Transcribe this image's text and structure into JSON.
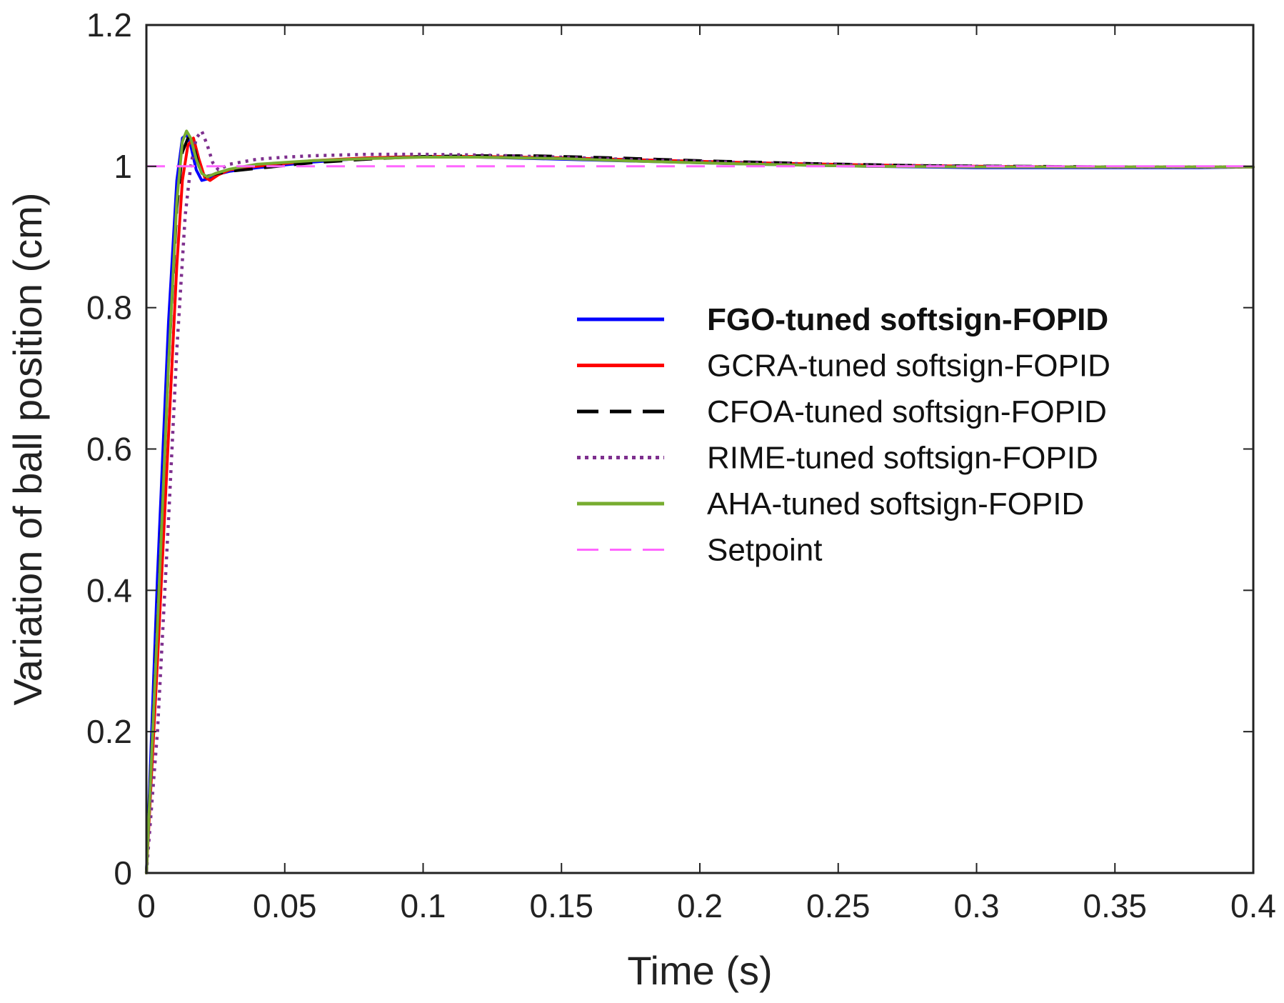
{
  "chart_data": {
    "type": "line",
    "title": "",
    "xlabel": "Time (s)",
    "ylabel": "Variation of ball position (cm)",
    "xlim": [
      0,
      0.4
    ],
    "ylim": [
      0,
      1.2
    ],
    "xticks": [
      0,
      0.05,
      0.1,
      0.15,
      0.2,
      0.25,
      0.3,
      0.35,
      0.4
    ],
    "xtick_labels": [
      "0",
      "0.05",
      "0.1",
      "0.15",
      "0.2",
      "0.25",
      "0.3",
      "0.35",
      "0.4"
    ],
    "yticks": [
      0,
      0.2,
      0.4,
      0.6,
      0.8,
      1.0,
      1.2
    ],
    "ytick_labels": [
      "0",
      "0.2",
      "0.4",
      "0.6",
      "0.8",
      "1",
      "1.2"
    ],
    "grid": false,
    "legend_position": "center-right",
    "series": [
      {
        "name": "FGO-tuned softsign-FOPID",
        "color": "#0000ff",
        "style": "solid",
        "bold_label": true,
        "x": [
          0,
          0.004,
          0.008,
          0.011,
          0.013,
          0.0145,
          0.016,
          0.018,
          0.02,
          0.022,
          0.025,
          0.03,
          0.04,
          0.06,
          0.08,
          0.1,
          0.12,
          0.15,
          0.18,
          0.22,
          0.26,
          0.3,
          0.34,
          0.38,
          0.4
        ],
        "y": [
          0,
          0.42,
          0.78,
          0.98,
          1.04,
          1.045,
          1.03,
          0.995,
          0.98,
          0.982,
          0.988,
          0.993,
          0.998,
          1.006,
          1.012,
          1.014,
          1.013,
          1.01,
          1.007,
          1.003,
          1.0,
          0.998,
          0.998,
          0.998,
          0.999
        ]
      },
      {
        "name": "GCRA-tuned softsign-FOPID",
        "color": "#ff0000",
        "style": "solid",
        "bold_label": false,
        "x": [
          0,
          0.004,
          0.008,
          0.011,
          0.013,
          0.015,
          0.017,
          0.019,
          0.021,
          0.023,
          0.026,
          0.03,
          0.04,
          0.06,
          0.08,
          0.1,
          0.12,
          0.15,
          0.18,
          0.22,
          0.26,
          0.3,
          0.34,
          0.38,
          0.4
        ],
        "y": [
          0,
          0.3,
          0.62,
          0.86,
          0.98,
          1.03,
          1.04,
          1.01,
          0.985,
          0.98,
          0.988,
          0.995,
          1.0,
          1.008,
          1.012,
          1.014,
          1.014,
          1.012,
          1.009,
          1.005,
          1.002,
          1.0,
          0.999,
          0.999,
          0.999
        ]
      },
      {
        "name": "CFOA-tuned softsign-FOPID",
        "color": "#000000",
        "style": "dashed",
        "bold_label": false,
        "x": [
          0,
          0.004,
          0.008,
          0.011,
          0.013,
          0.015,
          0.017,
          0.019,
          0.021,
          0.023,
          0.026,
          0.03,
          0.04,
          0.06,
          0.08,
          0.1,
          0.12,
          0.14,
          0.17,
          0.2,
          0.24,
          0.28,
          0.32,
          0.36,
          0.4
        ],
        "y": [
          0,
          0.36,
          0.72,
          0.94,
          1.02,
          1.04,
          1.03,
          1.0,
          0.985,
          0.987,
          0.99,
          0.993,
          0.997,
          1.005,
          1.01,
          1.014,
          1.015,
          1.015,
          1.012,
          1.008,
          1.004,
          1.001,
          1.0,
          0.999,
          0.999
        ]
      },
      {
        "name": "RIME-tuned softsign-FOPID",
        "color": "#7e2f8e",
        "style": "dotted",
        "bold_label": false,
        "x": [
          0,
          0.004,
          0.008,
          0.011,
          0.014,
          0.016,
          0.018,
          0.02,
          0.022,
          0.024,
          0.026,
          0.03,
          0.04,
          0.05,
          0.06,
          0.07,
          0.08,
          0.1,
          0.12,
          0.15,
          0.18,
          0.22,
          0.26,
          0.3,
          0.34,
          0.38,
          0.4
        ],
        "y": [
          0,
          0.2,
          0.5,
          0.74,
          0.93,
          1.0,
          1.04,
          1.05,
          1.03,
          1.005,
          0.995,
          1.003,
          1.01,
          1.013,
          1.015,
          1.016,
          1.017,
          1.017,
          1.016,
          1.013,
          1.009,
          1.005,
          1.002,
          1.0,
          0.999,
          0.999,
          0.999
        ]
      },
      {
        "name": "AHA-tuned softsign-FOPID",
        "color": "#77ac30",
        "style": "solid",
        "bold_label": false,
        "x": [
          0,
          0.004,
          0.008,
          0.011,
          0.013,
          0.0145,
          0.016,
          0.018,
          0.02,
          0.022,
          0.025,
          0.03,
          0.04,
          0.06,
          0.08,
          0.1,
          0.12,
          0.15,
          0.18,
          0.22,
          0.26,
          0.3,
          0.34,
          0.38,
          0.4
        ],
        "y": [
          0,
          0.35,
          0.72,
          0.95,
          1.035,
          1.05,
          1.04,
          1.01,
          0.99,
          0.985,
          0.99,
          0.996,
          1.003,
          1.008,
          1.011,
          1.013,
          1.013,
          1.011,
          1.007,
          1.003,
          1.0,
          0.999,
          0.999,
          0.999,
          0.999
        ]
      },
      {
        "name": "Setpoint",
        "color": "#ff66ff",
        "style": "dashed",
        "bold_label": false,
        "x": [
          0,
          0.4
        ],
        "y": [
          1,
          1
        ]
      }
    ]
  }
}
